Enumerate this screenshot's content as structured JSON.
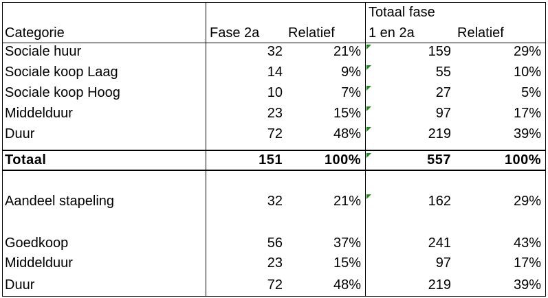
{
  "header": {
    "categorie": "Categorie",
    "fase2a": "Fase 2a",
    "relatief1": "Relatief",
    "totaal_line1": "Totaal fase",
    "totaal_line2": "1 en 2a",
    "relatief2": "Relatief"
  },
  "rows": [
    {
      "label": "Sociale huur",
      "fase2a": "32",
      "rel1": "21%",
      "totaal": "159",
      "rel2": "29%"
    },
    {
      "label": "Sociale koop Laag",
      "fase2a": "14",
      "rel1": "9%",
      "totaal": "55",
      "rel2": "10%"
    },
    {
      "label": "Sociale koop Hoog",
      "fase2a": "10",
      "rel1": "7%",
      "totaal": "27",
      "rel2": "5%"
    },
    {
      "label": "Middelduur",
      "fase2a": "23",
      "rel1": "15%",
      "totaal": "97",
      "rel2": "17%"
    },
    {
      "label": "Duur",
      "fase2a": "72",
      "rel1": "48%",
      "totaal": "219",
      "rel2": "39%"
    }
  ],
  "total": {
    "label": "Totaal",
    "fase2a": "151",
    "rel1": "100%",
    "totaal": "557",
    "rel2": "100%"
  },
  "stapeling": {
    "label": "Aandeel stapeling",
    "fase2a": "32",
    "rel1": "21%",
    "totaal": "162",
    "rel2": "29%"
  },
  "breakdown": [
    {
      "label": "Goedkoop",
      "fase2a": "56",
      "rel1": "37%",
      "totaal": "241",
      "rel2": "43%"
    },
    {
      "label": "Middelduur",
      "fase2a": "23",
      "rel1": "15%",
      "totaal": "97",
      "rel2": "17%"
    },
    {
      "label": "Duur",
      "fase2a": "72",
      "rel1": "48%",
      "totaal": "219",
      "rel2": "39%"
    }
  ],
  "colors": {
    "comment_marker": "#1e8a1e",
    "grid": "#000000"
  }
}
